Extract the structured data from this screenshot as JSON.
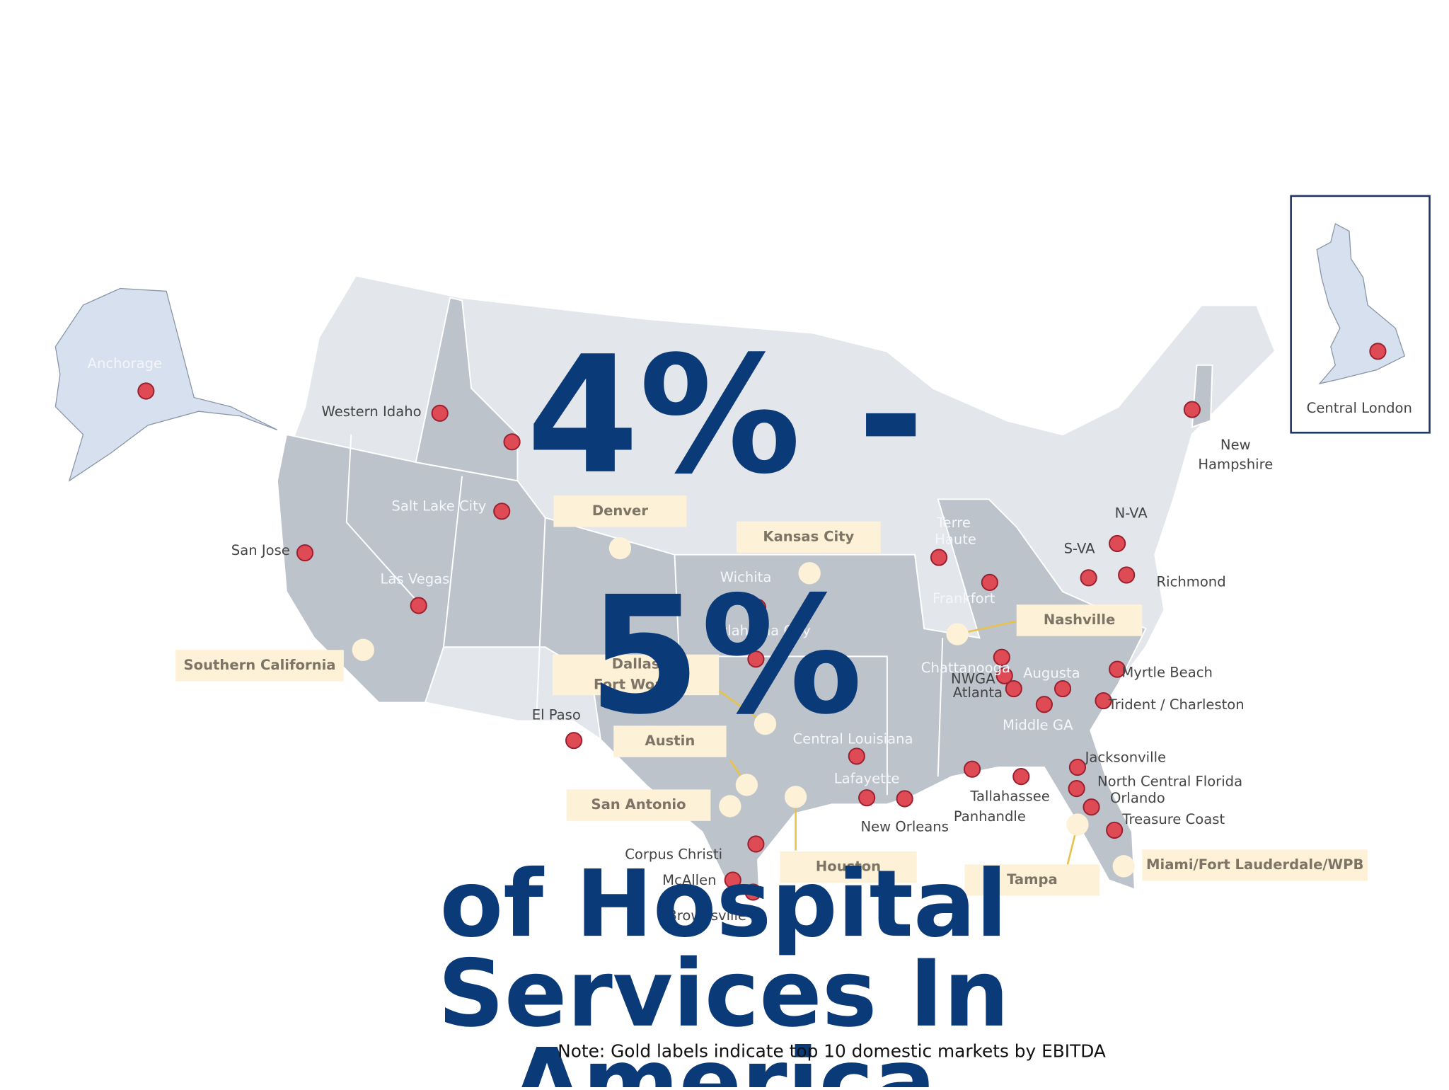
{
  "headline": {
    "lines": [
      "4% -",
      "5%"
    ],
    "subtitle_lines": [
      "of Hospital",
      "Services In",
      "America"
    ]
  },
  "map": {
    "labels": [
      "Anchorage",
      "Western Idaho",
      "Salt Lake City",
      "San Jose",
      "Las Vegas",
      "Wichita",
      "Oklahoma City",
      "El Paso",
      "Terre",
      "Haute",
      "Frankfort",
      "Chattanooga",
      "NWGA",
      "Atlanta",
      "Augusta",
      "Middle GA",
      "Central Louisiana",
      "Lafayette",
      "New Orleans",
      "Tallahassee",
      "Panhandle",
      "Jacksonville",
      "North Central Florida",
      "Orlando",
      "Treasure Coast",
      "Corpus Christi",
      "McAllen",
      "Brownsville",
      "Myrtle Beach",
      "Trident / Charleston",
      "Richmond",
      "S-VA",
      "N-VA",
      "New",
      "Hampshire"
    ],
    "gold_labels": [
      "Denver",
      "Kansas City",
      "Southern California",
      [
        "Dallas",
        "Fort Worth"
      ],
      "Nashville",
      "Austin",
      "San Antonio",
      "Houston",
      "Tampa",
      "Miami/Fort Lauderdale/WPB"
    ]
  },
  "inset": {
    "label": "Central London"
  },
  "note": "Note: Gold labels indicate top 10 domestic markets by EBITDA"
}
